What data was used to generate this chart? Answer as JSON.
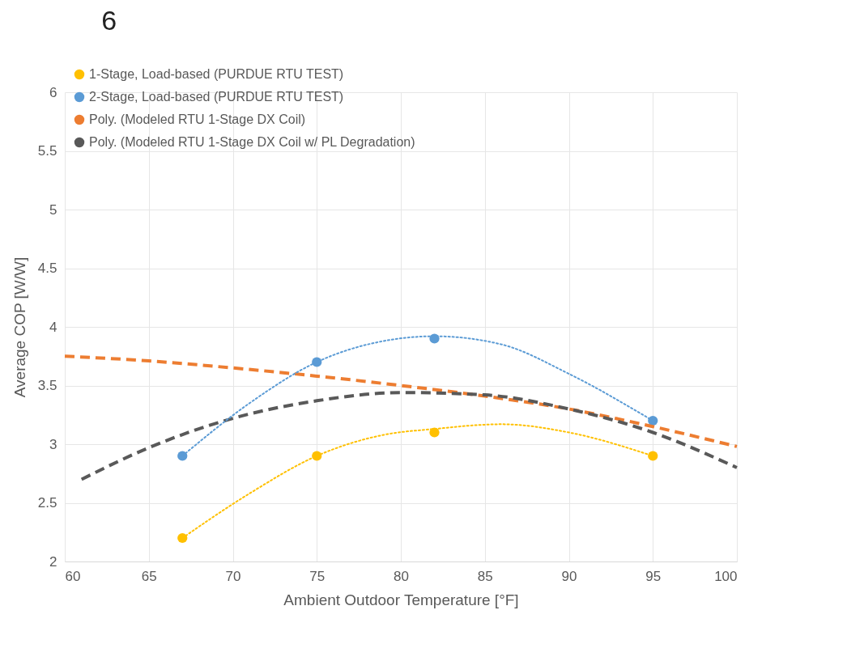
{
  "chart_data": {
    "type": "scatter",
    "xlabel": "Ambient Outdoor Temperature [°F]",
    "ylabel": "Average COP [W/W]",
    "annotations": [
      "6"
    ],
    "xlim": [
      60,
      100
    ],
    "xticks": [
      60,
      65,
      70,
      75,
      80,
      85,
      90,
      95,
      100
    ],
    "ylim": [
      2,
      6
    ],
    "yticks": [
      2,
      2.5,
      3,
      3.5,
      4,
      4.5,
      5,
      5.5,
      6
    ],
    "grid": true,
    "legend": "top left",
    "series": [
      {
        "name": "1-Stage, Load-based (PURDUE RTU TEST)",
        "marker": "circle",
        "color": "#ffc000",
        "x": [
          67,
          75,
          82,
          95
        ],
        "values": [
          2.2,
          2.9,
          3.1,
          2.9
        ]
      },
      {
        "name": "2-Stage, Load-based (PURDUE RTU TEST)",
        "marker": "circle",
        "color": "#5b9bd5",
        "x": [
          67,
          75,
          82,
          95
        ],
        "values": [
          2.9,
          3.7,
          3.9,
          3.2
        ]
      },
      {
        "name": "Poly. (Modeled RTU 1-Stage DX Coil)",
        "type": "line",
        "line_style": "dashed",
        "color": "#ed7d31",
        "x": [
          60,
          65,
          70,
          75,
          80,
          85,
          90,
          95,
          100
        ],
        "values": [
          3.75,
          3.71,
          3.65,
          3.58,
          3.5,
          3.41,
          3.3,
          3.15,
          2.98
        ]
      },
      {
        "name": "Poly. (Modeled RTU 1-Stage DX Coil w/ PL Degradation)",
        "type": "line",
        "line_style": "dashed",
        "color": "#595959",
        "x": [
          61,
          65,
          70,
          75,
          80,
          85,
          90,
          95,
          100
        ],
        "values": [
          2.7,
          2.97,
          3.22,
          3.37,
          3.44,
          3.42,
          3.3,
          3.1,
          2.8
        ]
      },
      {
        "type": "line",
        "line_style": "dotted",
        "color": "#ffc000",
        "x": [
          67,
          71,
          75,
          79,
          82,
          86,
          90,
          95
        ],
        "values": [
          2.2,
          2.58,
          2.9,
          3.08,
          3.13,
          3.17,
          3.1,
          2.9
        ]
      },
      {
        "type": "line",
        "line_style": "dotted",
        "color": "#5b9bd5",
        "x": [
          67,
          71,
          75,
          79,
          82,
          86,
          90,
          95
        ],
        "values": [
          2.9,
          3.35,
          3.7,
          3.88,
          3.92,
          3.85,
          3.6,
          3.2
        ]
      }
    ]
  }
}
